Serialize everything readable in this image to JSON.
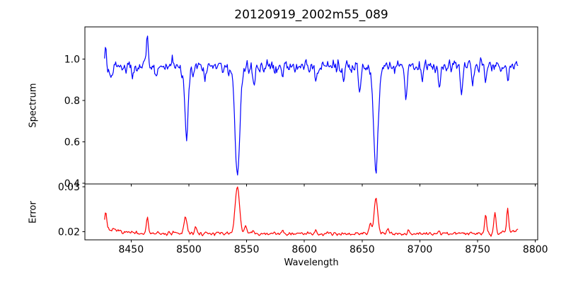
{
  "title": "20120919_2002m55_089",
  "figure": {
    "background": "#ffffff",
    "axis_color": "#000000"
  },
  "xaxis": {
    "label": "Wavelength",
    "lim": [
      8410,
      8802
    ],
    "tick_values": [
      8450,
      8500,
      8550,
      8600,
      8650,
      8700,
      8750,
      8800
    ],
    "tick_labels": [
      "8450",
      "8500",
      "8550",
      "8600",
      "8650",
      "8700",
      "8750",
      "8800"
    ]
  },
  "chart_data": [
    {
      "type": "line",
      "name": "spectrum",
      "title": "20120919_2002m55_089",
      "ylabel": "Spectrum",
      "color": "#0000ff",
      "x_start": 8427,
      "x_end": 8785,
      "n_points": 520,
      "ylim": [
        0.397,
        1.155
      ],
      "ytick_values": [
        0.4,
        0.6,
        0.8,
        1.0
      ],
      "ytick_labels": [
        "0.4",
        "0.6",
        "0.8",
        "1.0"
      ],
      "continuum": 0.965,
      "noise_sigma": 0.02,
      "seed": 42,
      "features": [
        [
          8428,
          0.09,
          0.7
        ],
        [
          8433,
          -0.05,
          1.2
        ],
        [
          8451,
          -0.07,
          0.8
        ],
        [
          8464,
          0.14,
          0.7
        ],
        [
          8472,
          -0.06,
          0.7
        ],
        [
          8498,
          -0.33,
          1.3
        ],
        [
          8498,
          -0.04,
          4
        ],
        [
          8514,
          -0.06,
          0.8
        ],
        [
          8542,
          -0.48,
          1.9
        ],
        [
          8542,
          -0.05,
          6
        ],
        [
          8556,
          -0.09,
          0.9
        ],
        [
          8581,
          -0.05,
          0.8
        ],
        [
          8610,
          -0.08,
          0.9
        ],
        [
          8634,
          -0.05,
          0.8
        ],
        [
          8648,
          -0.12,
          1.0
        ],
        [
          8662,
          -0.46,
          1.7
        ],
        [
          8662,
          -0.05,
          5
        ],
        [
          8688,
          -0.13,
          1.0
        ],
        [
          8702,
          -0.06,
          0.8
        ],
        [
          8717,
          -0.1,
          0.9
        ],
        [
          8736,
          -0.12,
          1.0
        ],
        [
          8746,
          -0.09,
          0.9
        ],
        [
          8757,
          -0.07,
          0.8
        ],
        [
          8776,
          -0.06,
          0.8
        ]
      ],
      "notable_points": [
        {
          "x": 8498,
          "y": 0.59
        },
        {
          "x": 8542,
          "y": 0.43
        },
        {
          "x": 8662,
          "y": 0.45
        },
        {
          "x": 8464,
          "y": 1.12
        }
      ]
    },
    {
      "type": "line",
      "name": "error",
      "ylabel": "Error",
      "color": "#ff0000",
      "x_start": 8427,
      "x_end": 8785,
      "n_points": 520,
      "ylim": [
        0.0182,
        0.0306
      ],
      "ytick_values": [
        0.02,
        0.03
      ],
      "ytick_labels": [
        "0.02",
        "0.03"
      ],
      "continuum": 0.0196,
      "noise_sigma": 0.00025,
      "seed": 7,
      "features": [
        [
          8425,
          0.001,
          12
        ],
        [
          8428,
          0.004,
          0.9
        ],
        [
          8464,
          0.0034,
          0.9
        ],
        [
          8497,
          0.0036,
          1.3
        ],
        [
          8506,
          0.0016,
          0.8
        ],
        [
          8542,
          0.0102,
          1.9
        ],
        [
          8549,
          0.0018,
          1.0
        ],
        [
          8556,
          0.001,
          0.7
        ],
        [
          8581,
          0.0008,
          0.7
        ],
        [
          8610,
          0.0009,
          0.7
        ],
        [
          8657,
          0.002,
          1.0
        ],
        [
          8662,
          0.0077,
          1.6
        ],
        [
          8672,
          0.0008,
          0.8
        ],
        [
          8690,
          0.0008,
          0.7
        ],
        [
          8717,
          0.0007,
          0.7
        ],
        [
          8757,
          0.0043,
          0.9
        ],
        [
          8765,
          0.0046,
          0.9
        ],
        [
          8776,
          0.0051,
          0.9
        ],
        [
          8790,
          0.001,
          9
        ]
      ],
      "notable_points": [
        {
          "x": 8542,
          "y": 0.03
        },
        {
          "x": 8662,
          "y": 0.0275
        },
        {
          "x": 8776,
          "y": 0.0255
        }
      ]
    }
  ]
}
